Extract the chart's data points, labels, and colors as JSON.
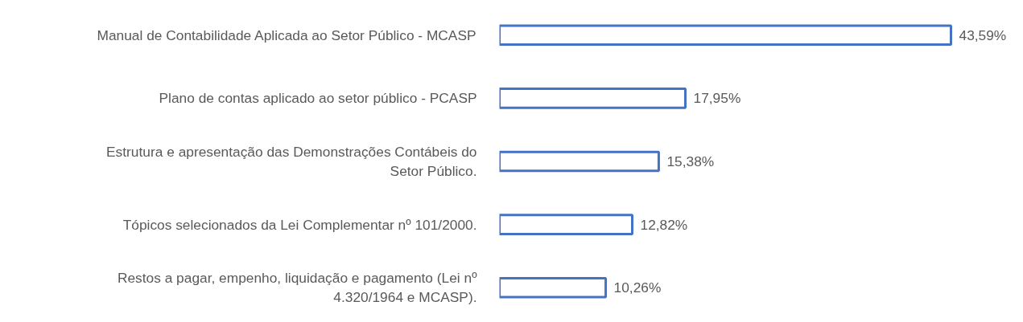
{
  "chart_data": {
    "type": "bar",
    "orientation": "horizontal",
    "categories": [
      "Manual de Contabilidade Aplicada ao Setor Público - MCASP",
      "Plano de contas aplicado ao setor público - PCASP",
      "Estrutura e apresentação das Demonstrações Contábeis do Setor Público.",
      "Tópicos selecionados da Lei Complementar nº 101/2000.",
      "Restos a pagar, empenho, liquidação e pagamento (Lei nº 4.320/1964 e MCASP)."
    ],
    "values": [
      43.59,
      17.95,
      15.38,
      12.82,
      10.26
    ],
    "value_labels": [
      "43,59%",
      "17,95%",
      "15,38%",
      "12,82%",
      "10,26%"
    ],
    "color": "#4472c4",
    "grid": false,
    "tick_labels": "y"
  }
}
